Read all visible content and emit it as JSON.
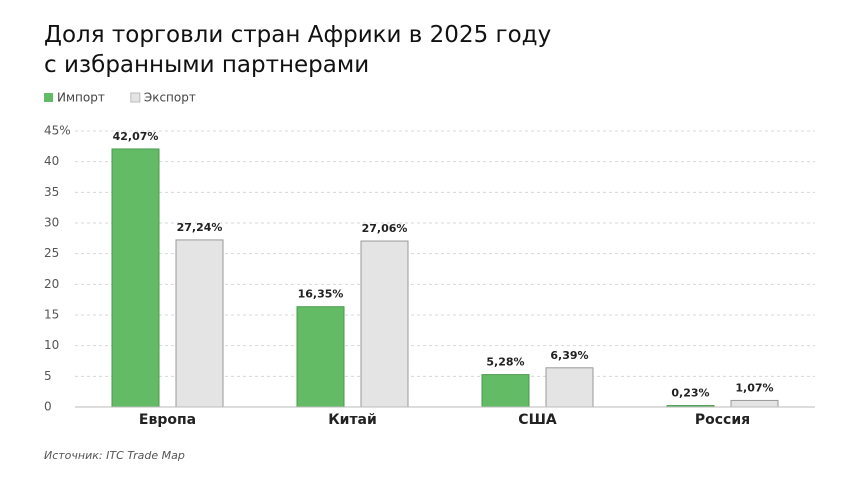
{
  "chart_data": {
    "type": "bar",
    "title": "Доля торговли стран Африки в 2025 году с избранными партнерами",
    "categories": [
      "Европа",
      "Китай",
      "США",
      "Россия"
    ],
    "series": [
      {
        "name": "Импорт",
        "color": "#63bb66",
        "values": [
          42.07,
          16.35,
          5.28,
          0.23
        ],
        "value_labels": [
          "42,07%",
          "16,35%",
          "5,28%",
          "0,23%"
        ]
      },
      {
        "name": "Экспорт",
        "color": "#e4e4e4",
        "values": [
          27.24,
          27.06,
          6.39,
          1.07
        ],
        "value_labels": [
          "27,24%",
          "27,06%",
          "6,39%",
          "1,07%"
        ]
      }
    ],
    "ylim": [
      0,
      45
    ],
    "yticks": [
      0,
      5,
      10,
      15,
      20,
      25,
      30,
      35,
      40,
      {
        "value": 45,
        "label": "45%"
      }
    ],
    "grid": true,
    "legend": "top-left",
    "source": "Источник: ITC Trade Map"
  }
}
